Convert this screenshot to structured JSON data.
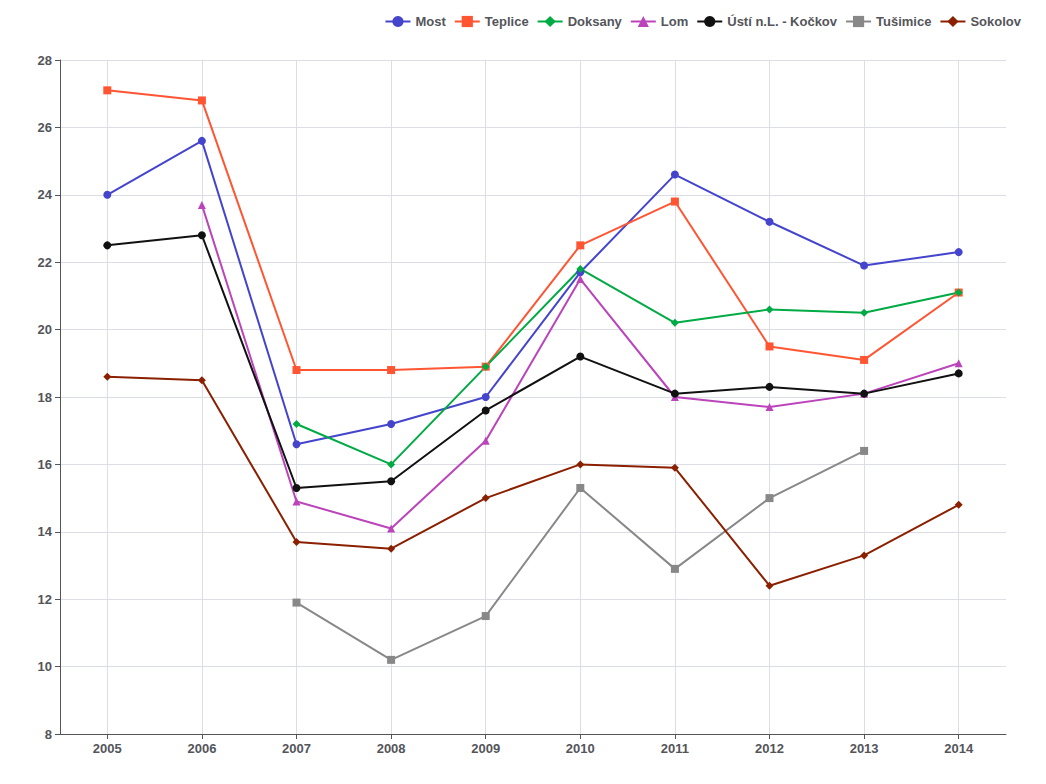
{
  "chart_data": {
    "type": "line",
    "x": [
      2005,
      2006,
      2007,
      2008,
      2009,
      2010,
      2011,
      2012,
      2013,
      2014
    ],
    "xlim": [
      2004.5,
      2014.5
    ],
    "xticks": [
      2005,
      2006,
      2007,
      2008,
      2009,
      2010,
      2011,
      2012,
      2013,
      2014
    ],
    "ylim": [
      8,
      28
    ],
    "yticks": [
      8,
      10,
      12,
      14,
      16,
      18,
      20,
      22,
      24,
      26,
      28
    ],
    "grid": true,
    "legend": "upper right",
    "series": [
      {
        "name": "Most",
        "color": "#4444cc",
        "marker": "circle",
        "values": [
          24.0,
          25.6,
          16.6,
          17.2,
          18.0,
          21.7,
          24.6,
          23.2,
          21.9,
          22.3
        ]
      },
      {
        "name": "Teplice",
        "color": "#ff5533",
        "marker": "square",
        "values": [
          27.1,
          26.8,
          18.8,
          18.8,
          18.9,
          22.5,
          23.8,
          19.5,
          19.1,
          21.1
        ]
      },
      {
        "name": "Doksany",
        "color": "#00aa44",
        "marker": "diamond",
        "values": [
          null,
          null,
          17.2,
          16.0,
          18.9,
          21.8,
          20.2,
          20.6,
          20.5,
          21.1
        ]
      },
      {
        "name": "Lom",
        "color": "#bb44bb",
        "marker": "triangle",
        "values": [
          null,
          23.7,
          14.9,
          14.1,
          16.7,
          21.5,
          18.0,
          17.7,
          18.1,
          19.0
        ]
      },
      {
        "name": "Ústí n.L. - Kočkov",
        "color": "#111111",
        "marker": "circle",
        "values": [
          22.5,
          22.8,
          15.3,
          15.5,
          17.6,
          19.2,
          18.1,
          18.3,
          18.1,
          18.7
        ]
      },
      {
        "name": "Tušimice",
        "color": "#888888",
        "marker": "square",
        "values": [
          null,
          null,
          11.9,
          10.2,
          11.5,
          15.3,
          12.9,
          15.0,
          16.4,
          null
        ]
      },
      {
        "name": "Sokolov",
        "color": "#8B2000",
        "marker": "diamond",
        "values": [
          18.6,
          18.5,
          13.7,
          13.5,
          15.0,
          16.0,
          15.9,
          12.4,
          13.3,
          14.8
        ]
      }
    ]
  }
}
